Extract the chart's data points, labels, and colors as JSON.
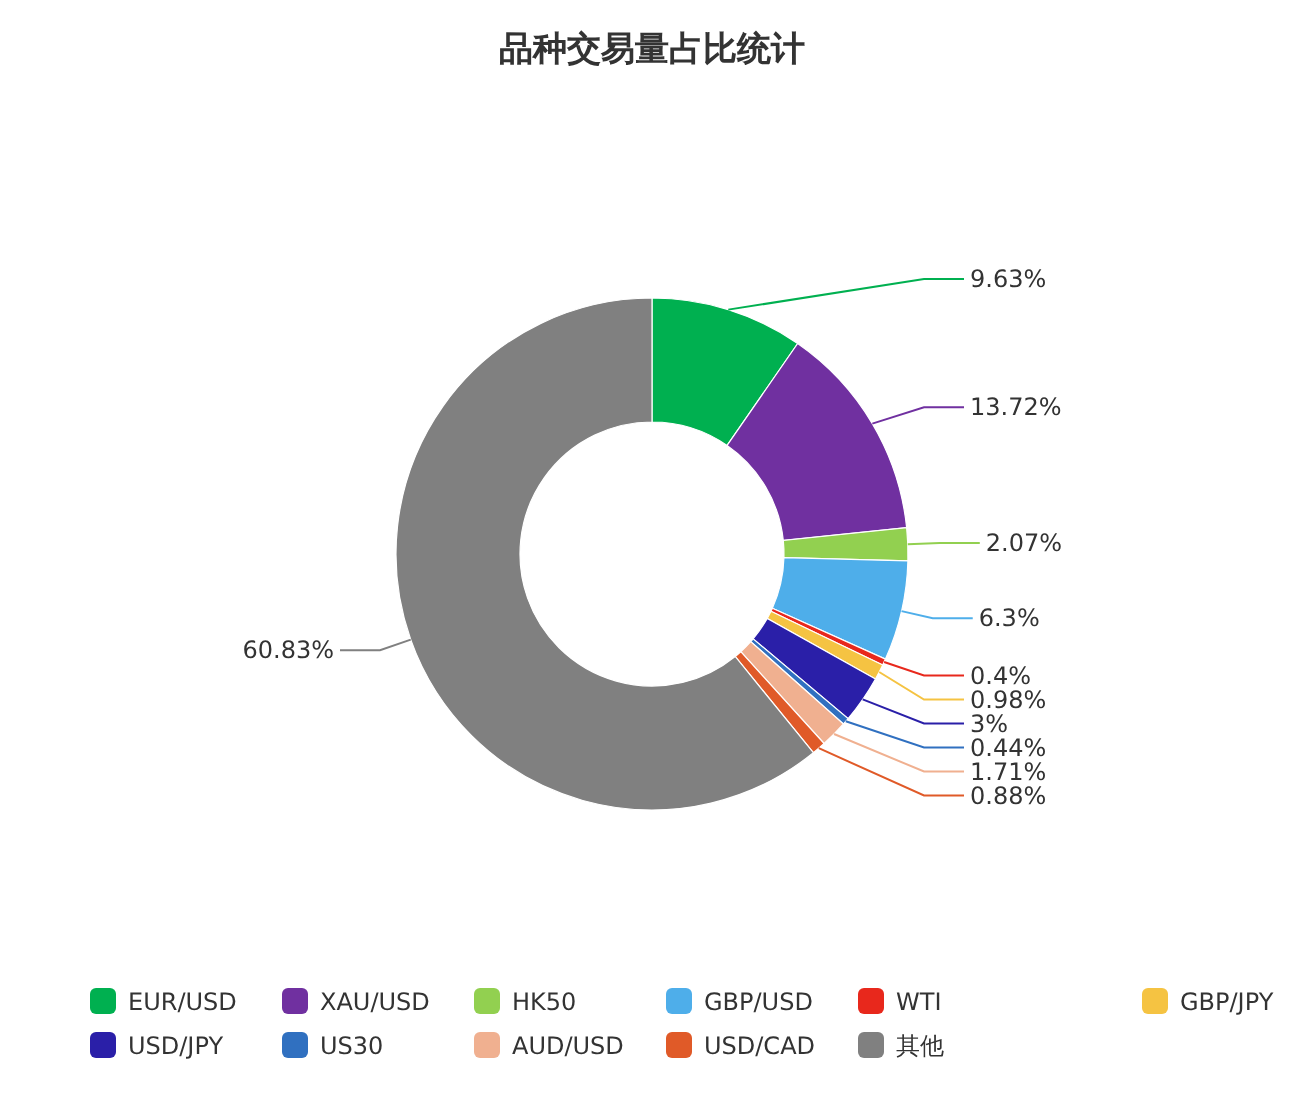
{
  "chart_data": {
    "type": "donut",
    "title": "品种交易量占比统计",
    "categories": [
      "EUR/USD",
      "XAU/USD",
      "HK50",
      "GBP/USD",
      "WTI",
      "GBP/JPY",
      "USD/JPY",
      "US30",
      "AUD/USD",
      "USD/CAD",
      "其他"
    ],
    "values": [
      9.63,
      13.72,
      2.07,
      6.3,
      0.4,
      0.98,
      3,
      0.44,
      1.71,
      0.88,
      60.83
    ],
    "value_labels": [
      "9.63%",
      "13.72%",
      "2.07%",
      "6.3%",
      "0.4%",
      "0.98%",
      "3%",
      "0.44%",
      "1.71%",
      "0.88%",
      "60.83%"
    ],
    "colors": [
      "#00b050",
      "#7030a0",
      "#92d050",
      "#4eaeea",
      "#e8281c",
      "#f5c342",
      "#2a1fa8",
      "#3070c0",
      "#f0b090",
      "#e05a28",
      "#808080"
    ],
    "legend": "bottom"
  }
}
